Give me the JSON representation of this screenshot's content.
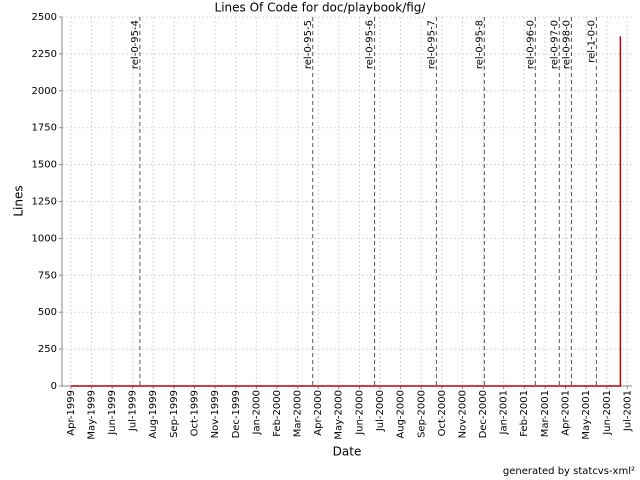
{
  "chart_data": {
    "type": "line",
    "title": "Lines Of Code for doc/playbook/fig/",
    "x_label": "Date",
    "y_label": "Lines",
    "footer": "generated by statcvs-xml²",
    "xlim": [
      1999.214,
      2001.519
    ],
    "ylim": [
      0,
      2500
    ],
    "xticks": [
      {
        "value": 1999.25,
        "label": "Apr-1999"
      },
      {
        "value": 1999.333,
        "label": "May-1999"
      },
      {
        "value": 1999.417,
        "label": "Jun-1999"
      },
      {
        "value": 1999.5,
        "label": "Jul-1999"
      },
      {
        "value": 1999.583,
        "label": "Aug-1999"
      },
      {
        "value": 1999.667,
        "label": "Sep-1999"
      },
      {
        "value": 1999.75,
        "label": "Oct-1999"
      },
      {
        "value": 1999.833,
        "label": "Nov-1999"
      },
      {
        "value": 1999.917,
        "label": "Dec-1999"
      },
      {
        "value": 2000.0,
        "label": "Jan-2000"
      },
      {
        "value": 2000.083,
        "label": "Feb-2000"
      },
      {
        "value": 2000.167,
        "label": "Mar-2000"
      },
      {
        "value": 2000.25,
        "label": "Apr-2000"
      },
      {
        "value": 2000.333,
        "label": "May-2000"
      },
      {
        "value": 2000.417,
        "label": "Jun-2000"
      },
      {
        "value": 2000.5,
        "label": "Jul-2000"
      },
      {
        "value": 2000.583,
        "label": "Aug-2000"
      },
      {
        "value": 2000.667,
        "label": "Sep-2000"
      },
      {
        "value": 2000.75,
        "label": "Oct-2000"
      },
      {
        "value": 2000.833,
        "label": "Nov-2000"
      },
      {
        "value": 2000.917,
        "label": "Dec-2000"
      },
      {
        "value": 2001.0,
        "label": "Jan-2001"
      },
      {
        "value": 2001.083,
        "label": "Feb-2001"
      },
      {
        "value": 2001.167,
        "label": "Mar-2001"
      },
      {
        "value": 2001.25,
        "label": "Apr-2001"
      },
      {
        "value": 2001.333,
        "label": "May-2001"
      },
      {
        "value": 2001.417,
        "label": "Jun-2001"
      },
      {
        "value": 2001.5,
        "label": "Jul-2001"
      }
    ],
    "yticks": [
      0,
      250,
      500,
      750,
      1000,
      1250,
      1500,
      1750,
      2000,
      2250,
      2500
    ],
    "grid": true,
    "markers": [
      {
        "x": 1999.529,
        "label": "rel-0-95-4"
      },
      {
        "x": 2000.228,
        "label": "rel-0-95-5"
      },
      {
        "x": 2000.478,
        "label": "rel-0-95-6"
      },
      {
        "x": 2000.728,
        "label": "rel-0-95-7"
      },
      {
        "x": 2000.922,
        "label": "rel-0-95-8"
      },
      {
        "x": 2001.128,
        "label": "rel-0-96-0"
      },
      {
        "x": 2001.225,
        "label": "rel-0-97-0"
      },
      {
        "x": 2001.274,
        "label": "rel-0-98-0"
      },
      {
        "x": 2001.375,
        "label": "rel-1-0-0"
      }
    ],
    "series": [
      {
        "color": "#c00000",
        "x": [
          1999.25,
          2001.472,
          2001.472
        ],
        "values": [
          0,
          0,
          2370
        ]
      }
    ]
  }
}
